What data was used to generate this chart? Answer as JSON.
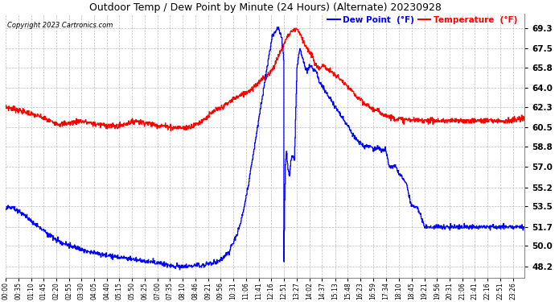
{
  "title": "Outdoor Temp / Dew Point by Minute (24 Hours) (Alternate) 20230928",
  "copyright": "Copyright 2023 Cartronics.com",
  "legend_dew": "Dew Point  (°F)",
  "legend_temp": "Temperature  (°F)",
  "ylabel_right_ticks": [
    48.2,
    50.0,
    51.7,
    53.5,
    55.2,
    57.0,
    58.8,
    60.5,
    62.3,
    64.0,
    65.8,
    67.5,
    69.3
  ],
  "ylim": [
    47.2,
    70.6
  ],
  "xlim_minutes": [
    0,
    1439
  ],
  "xtick_labels": [
    "00:00",
    "00:35",
    "01:10",
    "01:45",
    "02:20",
    "02:55",
    "03:30",
    "04:05",
    "04:40",
    "05:15",
    "05:50",
    "06:25",
    "07:00",
    "07:35",
    "08:10",
    "08:46",
    "09:21",
    "09:56",
    "10:31",
    "11:06",
    "11:41",
    "12:16",
    "12:51",
    "13:27",
    "14:02",
    "14:37",
    "15:13",
    "15:48",
    "16:23",
    "16:59",
    "17:34",
    "18:10",
    "18:45",
    "19:21",
    "19:56",
    "20:31",
    "21:06",
    "21:41",
    "22:16",
    "22:51",
    "23:26"
  ],
  "background_color": "#ffffff",
  "grid_color": "#bbbbbb",
  "temp_color": "#ff0000",
  "dew_color": "#0000ff",
  "title_color": "#000000",
  "copyright_color": "#000000",
  "legend_dew_color": "#0000ff",
  "legend_temp_color": "#ff0000",
  "line_width": 1.0
}
